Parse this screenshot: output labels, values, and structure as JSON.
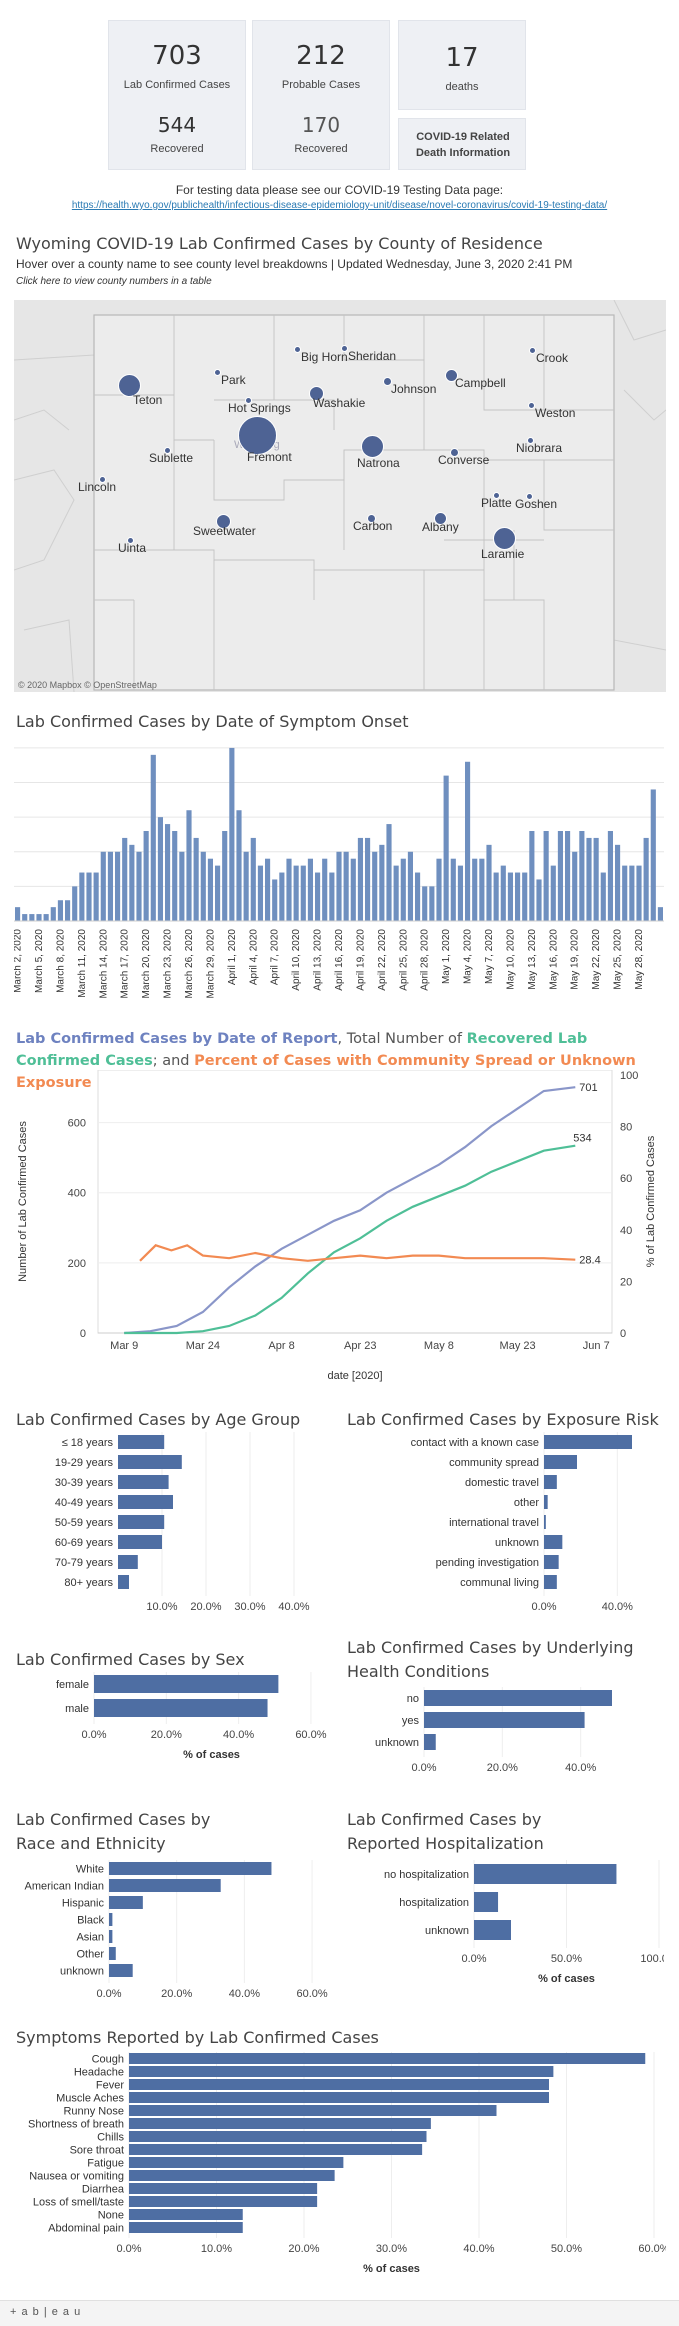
{
  "summary": {
    "lab_confirmed_value": "703",
    "lab_confirmed_label": "Lab Confirmed Cases",
    "lab_recovered_value": "544",
    "lab_recovered_label": "Recovered",
    "probable_value": "212",
    "probable_label": "Probable Cases",
    "probable_recovered_value": "170",
    "probable_recovered_label": "Recovered",
    "deaths_value": "17",
    "deaths_label": "deaths",
    "death_info_label": "COVID-19 Related Death Information"
  },
  "testing": {
    "text": "For testing data please see our COVID-19 Testing Data page:",
    "link": "https://health.wyo.gov/publichealth/infectious-disease-epidemiology-unit/disease/novel-coronavirus/covid-19-testing-data/"
  },
  "map": {
    "title": "Wyoming COVID-19 Lab Confirmed Cases by County of Residence",
    "subtitle": "Hover over a county name to see county level breakdowns | Updated Wednesday, June 3, 2020 2:41 PM",
    "table_link": "Click here to view county numbers in a table",
    "state_label": "Wyoming",
    "attribution": "© 2020 Mapbox © OpenStreetMap",
    "counties": [
      "Sheridan",
      "Crook",
      "Park",
      "Big Horn",
      "Campbell",
      "Teton",
      "Johnson",
      "Weston",
      "Hot Springs",
      "Washakie",
      "Fremont",
      "Natrona",
      "Niobrara",
      "Sublette",
      "Converse",
      "Lincoln",
      "Platte",
      "Goshen",
      "Sweetwater",
      "Carbon",
      "Albany",
      "Laramie",
      "Uinta"
    ]
  },
  "onset": {
    "title": "Lab Confirmed Cases by Date of Symptom Onset",
    "color": "#6f8fbf"
  },
  "report": {
    "title_parts": [
      {
        "text": "Lab Confirmed Cases by Date of Report",
        "color": "#6e82c0",
        "bold": true
      },
      {
        "text": ", Total Number of ",
        "color": "#555555",
        "bold": false
      },
      {
        "text": "Recovered Lab Confirmed Cases",
        "color": "#4fbf97",
        "bold": true
      },
      {
        "text": "; and ",
        "color": "#555555",
        "bold": false
      },
      {
        "text": "Percent of Cases with Community Spread or Unknown Exposure",
        "color": "#f28a52",
        "bold": true
      }
    ],
    "ylabel_left": "Number of Lab Confirmed Cases",
    "ylabel_right": "% of Lab Confirmed Cases",
    "xlabel": "date [2020]",
    "end_label_cases": "701",
    "end_label_recovered": "534",
    "end_label_pct": "28.4"
  },
  "labels": {
    "pct_of_cases": "% of cases"
  },
  "footer": {
    "brand": "+ a b | e a u"
  },
  "chart_data": [
    {
      "type": "bar",
      "title": "Lab Confirmed Cases by Date of Symptom Onset",
      "categories": [
        "March 2, 2020",
        "March 3",
        "March 4",
        "March 5, 2020",
        "March 6",
        "March 7",
        "March 8, 2020",
        "March 9",
        "March 10",
        "March 11, 2020",
        "March 12",
        "March 13",
        "March 14, 2020",
        "March 15",
        "March 16",
        "March 17, 2020",
        "March 18",
        "March 19",
        "March 20, 2020",
        "March 21",
        "March 22",
        "March 23, 2020",
        "March 24",
        "March 25",
        "March 26, 2020",
        "March 27",
        "March 28",
        "March 29, 2020",
        "March 30",
        "March 31",
        "April 1, 2020",
        "April 2",
        "April 3",
        "April 4, 2020",
        "April 5",
        "April 6",
        "April 7, 2020",
        "April 8",
        "April 9",
        "April 10, 2020",
        "April 11",
        "April 12",
        "April 13, 2020",
        "April 14",
        "April 15",
        "April 16, 2020",
        "April 17",
        "April 18",
        "April 19, 2020",
        "April 20",
        "April 21",
        "April 22, 2020",
        "April 23",
        "April 24",
        "April 25, 2020",
        "April 26",
        "April 27",
        "April 28",
        "April 29",
        "April 30",
        "May 1, 2020",
        "May 2",
        "May 3",
        "May 4, 2020",
        "May 5",
        "May 6",
        "May 7, 2020",
        "May 8",
        "May 9",
        "May 10, 2020",
        "May 11",
        "May 12",
        "May 13, 2020",
        "May 14",
        "May 15",
        "May 16, 2020",
        "May 17",
        "May 18",
        "May 19, 2020",
        "May 20",
        "May 21",
        "May 22, 2020",
        "May 23",
        "May 24",
        "May 25, 2020",
        "May 26",
        "May 27",
        "May 28, 2020",
        "May 29",
        "May 30",
        "May 31"
      ],
      "values": [
        2,
        1,
        1,
        1,
        1,
        2,
        3,
        3,
        5,
        7,
        7,
        7,
        10,
        10,
        10,
        12,
        11,
        10,
        13,
        24,
        15,
        14,
        13,
        10,
        16,
        12,
        10,
        9,
        8,
        13,
        25,
        16,
        10,
        12,
        8,
        9,
        6,
        7,
        9,
        8,
        8,
        9,
        7,
        9,
        7,
        10,
        10,
        9,
        12,
        12,
        10,
        11,
        14,
        8,
        9,
        10,
        7,
        5,
        5,
        9,
        21,
        9,
        8,
        23,
        9,
        9,
        11,
        7,
        8,
        7,
        7,
        7,
        13,
        6,
        13,
        8,
        13,
        13,
        10,
        13,
        12,
        12,
        7,
        13,
        11,
        8,
        8,
        8,
        12,
        19,
        2
      ],
      "xtick_labels": [
        "March 2, 2020",
        "March 5, 2020",
        "March 8, 2020",
        "March 11, 2020",
        "March 14, 2020",
        "March 17, 2020",
        "March 20, 2020",
        "March 23, 2020",
        "March 26, 2020",
        "March 29, 2020",
        "April 1, 2020",
        "April 4, 2020",
        "April 7, 2020",
        "April 10, 2020",
        "April 13, 2020",
        "April 16, 2020",
        "April 19, 2020",
        "April 22, 2020",
        "April 25, 2020",
        "April 28, 2020",
        "May 1, 2020",
        "May 4, 2020",
        "May 7, 2020",
        "May 10, 2020",
        "May 13, 2020",
        "May 16, 2020",
        "May 19, 2020",
        "May 22, 2020",
        "May 25, 2020",
        "May 28, 2020"
      ],
      "grid": true
    },
    {
      "type": "line",
      "title": "Lab Confirmed Cases by Date of Report, Total Number of Recovered Lab Confirmed Cases; and Percent of Cases with Community Spread or Unknown Exposure",
      "xlabel": "date [2020]",
      "ylabel": "Number of Lab Confirmed Cases",
      "ylabel_right": "% of Lab Confirmed Cases",
      "x_ticks": [
        "Mar 9",
        "Mar 24",
        "Apr 8",
        "Apr 23",
        "May 8",
        "May 23",
        "Jun 7"
      ],
      "ylim": [
        0,
        750
      ],
      "ylim_right": [
        0,
        100
      ],
      "y_ticks": [
        0,
        200,
        400,
        600
      ],
      "y_ticks_right": [
        0,
        20,
        40,
        60,
        80,
        100
      ],
      "x": [
        "Mar 9",
        "Mar 14",
        "Mar 19",
        "Mar 24",
        "Mar 29",
        "Apr 3",
        "Apr 8",
        "Apr 13",
        "Apr 18",
        "Apr 23",
        "Apr 28",
        "May 3",
        "May 8",
        "May 13",
        "May 18",
        "May 23",
        "May 28",
        "Jun 3"
      ],
      "series": [
        {
          "name": "Lab Confirmed Cases",
          "color": "#8a96c9",
          "axis": "left",
          "values": [
            0,
            5,
            20,
            60,
            130,
            190,
            240,
            280,
            320,
            350,
            400,
            440,
            480,
            530,
            590,
            640,
            690,
            701
          ]
        },
        {
          "name": "Recovered Lab Confirmed Cases",
          "color": "#4fbf97",
          "axis": "left",
          "values": [
            0,
            0,
            0,
            5,
            20,
            50,
            100,
            170,
            230,
            270,
            320,
            360,
            390,
            420,
            460,
            490,
            520,
            534
          ]
        },
        {
          "name": "Percent of Cases with Community Spread or Unknown Exposure",
          "color": "#f28a52",
          "axis": "right",
          "x": [
            "Mar 12",
            "Mar 15",
            "Mar 18",
            "Mar 21",
            "Mar 24",
            "Mar 29",
            "Apr 3",
            "Apr 8",
            "Apr 13",
            "Apr 18",
            "Apr 23",
            "Apr 28",
            "May 3",
            "May 8",
            "May 13",
            "May 18",
            "May 23",
            "May 28",
            "Jun 3"
          ],
          "values": [
            28,
            34,
            32,
            34,
            30,
            29,
            31,
            29,
            28,
            29,
            30,
            29,
            30,
            30,
            29,
            29,
            29,
            29,
            28.4
          ]
        }
      ],
      "grid": true
    },
    {
      "type": "bar",
      "title": "Lab Confirmed Cases by Age Group",
      "orientation": "horizontal",
      "categories": [
        "≤ 18 years",
        "19-29 years",
        "30-39 years",
        "40-49 years",
        "50-59 years",
        "60-69 years",
        "70-79 years",
        "80+ years"
      ],
      "values": [
        10.5,
        14.5,
        11.5,
        12.5,
        10.5,
        10,
        4.5,
        2.5
      ],
      "x_ticks": [
        "10.0%",
        "20.0%",
        "30.0%",
        "40.0%"
      ],
      "xlim": [
        0,
        40
      ],
      "grid": true
    },
    {
      "type": "bar",
      "title": "Lab Confirmed Cases by Exposure Risk",
      "orientation": "horizontal",
      "categories": [
        "contact with a known case",
        "community spread",
        "domestic travel",
        "other",
        "international travel",
        "unknown",
        "pending investigation",
        "communal living"
      ],
      "values": [
        48,
        18,
        7,
        2,
        1,
        10,
        8,
        7
      ],
      "x_ticks": [
        "0.0%",
        "40.0%"
      ],
      "xlim": [
        0,
        60
      ],
      "grid": true
    },
    {
      "type": "bar",
      "title": "Lab Confirmed Cases by Sex",
      "orientation": "horizontal",
      "categories": [
        "female",
        "male"
      ],
      "values": [
        51,
        48
      ],
      "xlabel": "% of cases",
      "x_ticks": [
        "0.0%",
        "20.0%",
        "40.0%",
        "60.0%"
      ],
      "xlim": [
        0,
        65
      ],
      "grid": true
    },
    {
      "type": "bar",
      "title": "Lab Confirmed Cases by Underlying Health Conditions",
      "orientation": "horizontal",
      "categories": [
        "no",
        "yes",
        "unknown"
      ],
      "values": [
        48,
        41,
        3
      ],
      "x_ticks": [
        "0.0%",
        "20.0%",
        "40.0%"
      ],
      "xlim": [
        0,
        60
      ],
      "grid": true
    },
    {
      "type": "bar",
      "title": "Lab Confirmed Cases by Race and Ethnicity",
      "orientation": "horizontal",
      "categories": [
        "White",
        "American Indian",
        "Hispanic",
        "Black",
        "Asian",
        "Other",
        "unknown"
      ],
      "values": [
        48,
        33,
        10,
        1,
        1,
        2,
        7
      ],
      "x_ticks": [
        "0.0%",
        "20.0%",
        "40.0%",
        "60.0%"
      ],
      "xlim": [
        0,
        65
      ],
      "grid": true
    },
    {
      "type": "bar",
      "title": "Lab Confirmed Cases by Reported Hospitalization",
      "orientation": "horizontal",
      "categories": [
        "no hospitalization",
        "hospitalization",
        "unknown"
      ],
      "values": [
        77,
        13,
        20
      ],
      "xlabel": "% of cases",
      "x_ticks": [
        "0.0%",
        "50.0%",
        "100.0%"
      ],
      "xlim": [
        0,
        100
      ],
      "grid": true
    },
    {
      "type": "bar",
      "title": "Symptoms Reported by Lab Confirmed Cases",
      "orientation": "horizontal",
      "categories": [
        "Cough",
        "Headache",
        "Fever",
        "Muscle Aches",
        "Runny Nose",
        "Shortness of breath",
        "Chills",
        "Sore throat",
        "Fatigue",
        "Nausea or vomiting",
        "Diarrhea",
        "Loss of smell/taste",
        "None",
        "Abdominal pain"
      ],
      "values": [
        59,
        48.5,
        48,
        48,
        42,
        34.5,
        34,
        33.5,
        24.5,
        23.5,
        21.5,
        21.5,
        13,
        13
      ],
      "xlabel": "% of cases",
      "x_ticks": [
        "0.0%",
        "10.0%",
        "20.0%",
        "30.0%",
        "40.0%",
        "50.0%",
        "60.0%"
      ],
      "xlim": [
        0,
        60
      ],
      "grid": true
    }
  ]
}
